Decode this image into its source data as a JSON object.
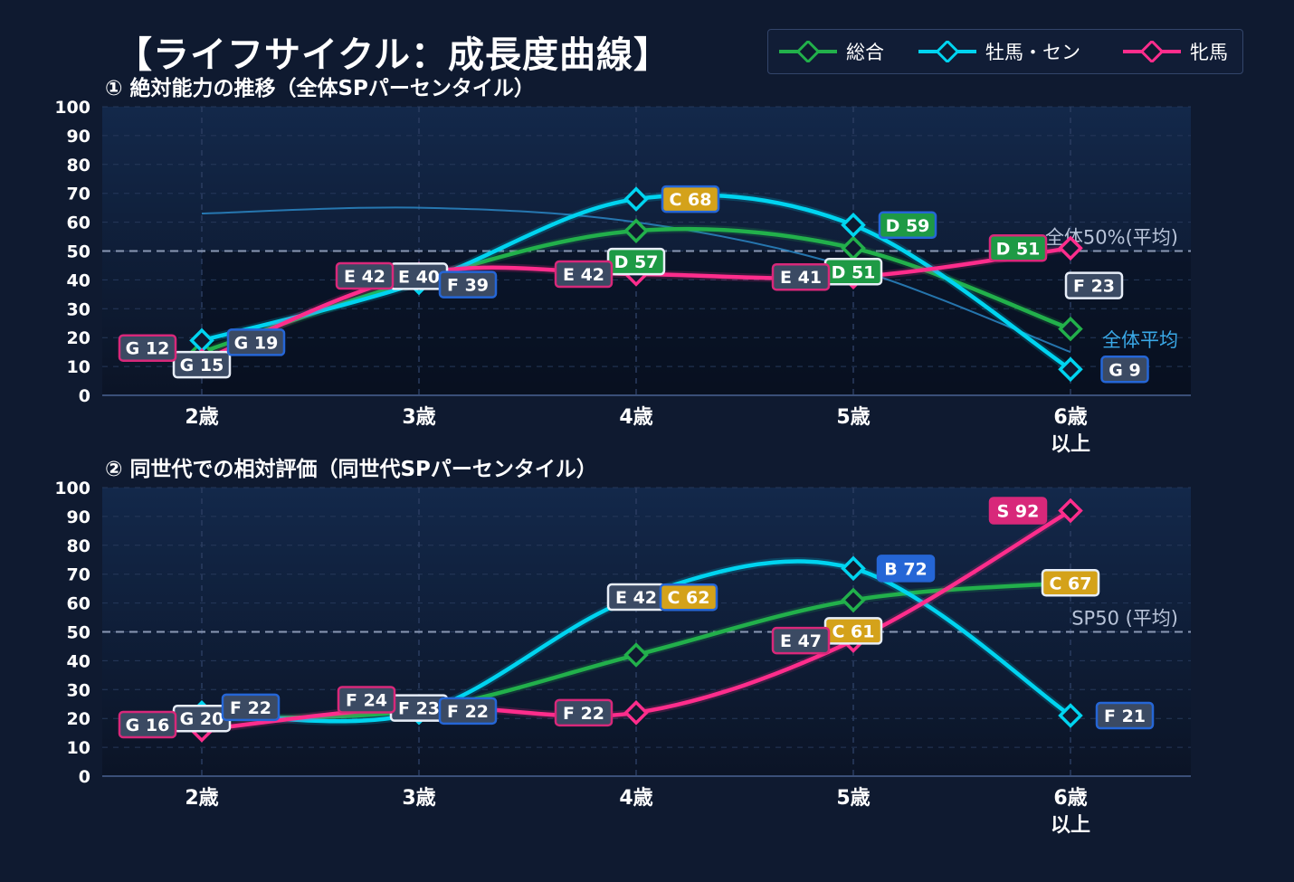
{
  "title": "【ライフサイクル：成長度曲線】",
  "legend": [
    {
      "name": "総合",
      "color": "#22b04b"
    },
    {
      "name": "牡馬・セン",
      "color": "#00d4f0"
    },
    {
      "name": "牝馬",
      "color": "#ff2d8c"
    }
  ],
  "chart_data": [
    {
      "type": "line",
      "title": "① 絶対能力の推移（全体SPパーセンタイル）",
      "categories": [
        "2歳",
        "3歳",
        "4歳",
        "5歳",
        "6歳\n以上"
      ],
      "ylim": [
        0,
        100
      ],
      "yticks": [
        0,
        10,
        20,
        30,
        40,
        50,
        60,
        70,
        80,
        90,
        100
      ],
      "series": [
        {
          "name": "総合",
          "color": "#22b04b",
          "values": [
            15,
            40,
            57,
            51,
            23
          ],
          "labels": [
            "G 15",
            "E 40",
            "D 57",
            "D 51",
            "F 23"
          ]
        },
        {
          "name": "牡馬・セン",
          "color": "#00d4f0",
          "values": [
            19,
            39,
            68,
            59,
            9
          ],
          "labels": [
            "G 19",
            "F 39",
            "C 68",
            "D 59",
            "G 9"
          ]
        },
        {
          "name": "牝馬",
          "color": "#ff2d8c",
          "values": [
            12,
            42,
            42,
            41,
            51
          ],
          "labels": [
            "G 12",
            "E 42",
            "E 42",
            "E 41",
            "D 51"
          ]
        }
      ],
      "reference_line": {
        "value": 50,
        "label": "全体50%(平均)"
      },
      "average_curve": {
        "label": "全体平均",
        "values": [
          63,
          65,
          60,
          44,
          15
        ]
      }
    },
    {
      "type": "line",
      "title": "② 同世代での相対評価（同世代SPパーセンタイル）",
      "categories": [
        "2歳",
        "3歳",
        "4歳",
        "5歳",
        "6歳\n以上"
      ],
      "ylim": [
        0,
        100
      ],
      "yticks": [
        0,
        10,
        20,
        30,
        40,
        50,
        60,
        70,
        80,
        90,
        100
      ],
      "series": [
        {
          "name": "総合",
          "color": "#22b04b",
          "values": [
            20,
            23,
            42,
            61,
            67
          ],
          "labels": [
            "G 20",
            "F 23",
            "E 42",
            "C 61",
            "C 67"
          ]
        },
        {
          "name": "牡馬・セン",
          "color": "#00d4f0",
          "values": [
            22,
            22,
            62,
            72,
            21
          ],
          "labels": [
            "F 22",
            "F 22",
            "C 62",
            "B 72",
            "F 21"
          ]
        },
        {
          "name": "牝馬",
          "color": "#ff2d8c",
          "values": [
            16,
            24,
            22,
            47,
            92
          ],
          "labels": [
            "G 16",
            "F 24",
            "F 22",
            "E 47",
            "S 92"
          ]
        }
      ],
      "reference_line": {
        "value": 50,
        "label": "SP50 (平均)"
      }
    }
  ]
}
